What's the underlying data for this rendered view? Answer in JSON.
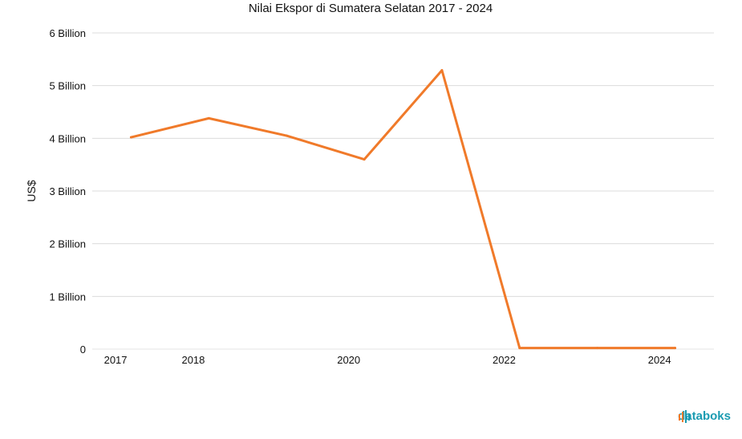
{
  "chart_data": {
    "type": "line",
    "title": "Nilai Ekspor di Sumatera Selatan 2017 - 2024",
    "xlabel": "",
    "ylabel": "US$",
    "x": [
      2017.2,
      2018.2,
      2019.2,
      2020.2,
      2021.2,
      2022.2,
      2023.2,
      2024.2
    ],
    "x_ticks": [
      2017,
      2018,
      2020,
      2022,
      2024
    ],
    "ylim": [
      0,
      6
    ],
    "y_ticks": [
      {
        "value": 0,
        "label": "0"
      },
      {
        "value": 1,
        "label": "1 Billion"
      },
      {
        "value": 2,
        "label": "2 Billion"
      },
      {
        "value": 3,
        "label": "3 Billion"
      },
      {
        "value": 4,
        "label": "4 Billion"
      },
      {
        "value": 5,
        "label": "5 Billion"
      },
      {
        "value": 6,
        "label": "6 Billion"
      }
    ],
    "series": [
      {
        "color": "#f07a2a",
        "values": [
          4.02,
          4.38,
          4.05,
          3.6,
          5.29,
          0.02,
          0.02,
          0.02
        ]
      }
    ],
    "grid": true,
    "y_unit": "Billion US$"
  },
  "brand": {
    "logo_text": "databoks",
    "accent": "#1a9bb1",
    "accent2": "#f07a2a"
  }
}
